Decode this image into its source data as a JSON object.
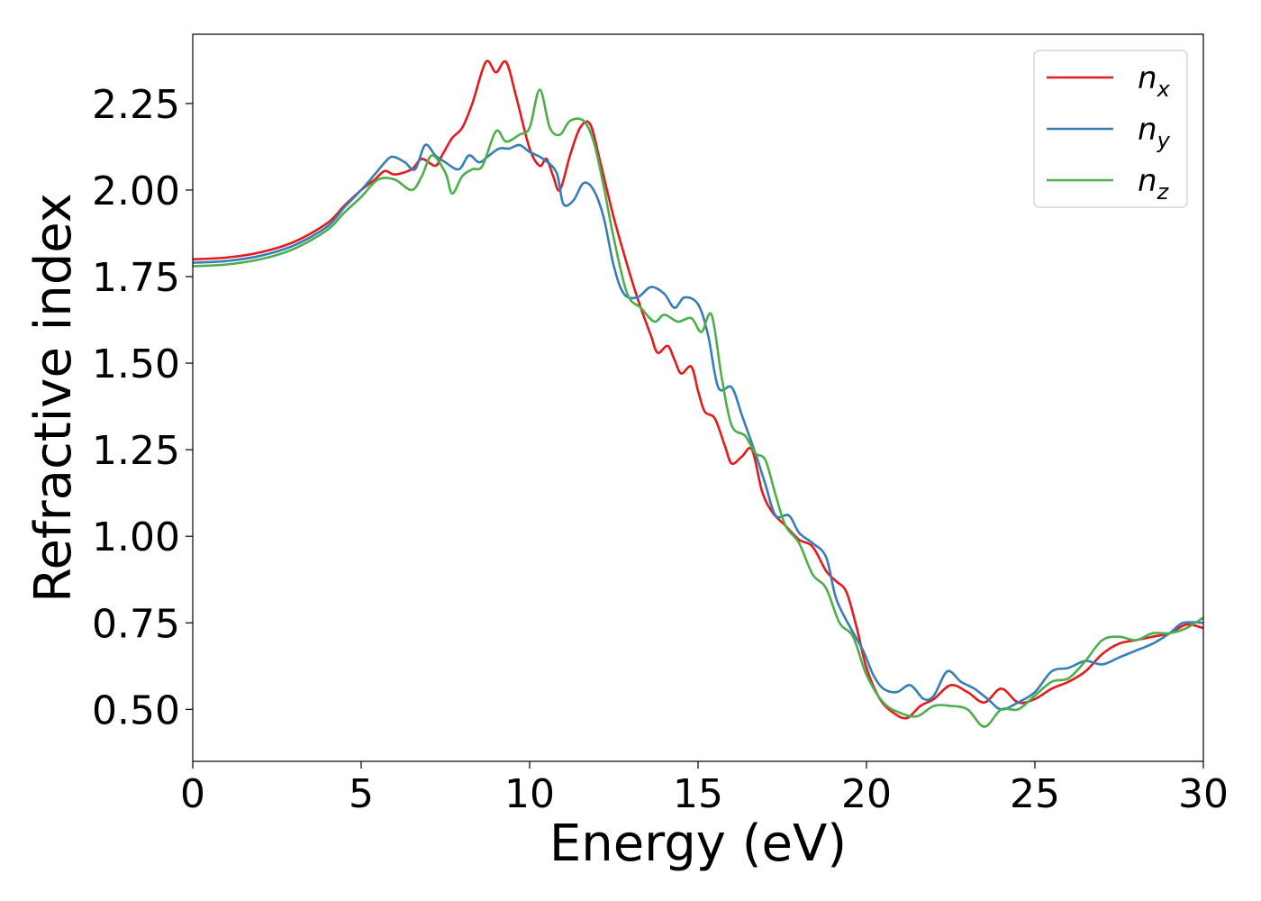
{
  "chart_data": {
    "type": "line",
    "xlabel": "Energy (eV)",
    "ylabel": "Refractive index",
    "xlim": [
      0,
      30
    ],
    "ylim": [
      0.35,
      2.45
    ],
    "xticks": [
      0,
      5,
      10,
      15,
      20,
      25,
      30
    ],
    "xtick_labels": [
      "0",
      "5",
      "10",
      "15",
      "20",
      "25",
      "30"
    ],
    "yticks": [
      0.5,
      0.75,
      1.0,
      1.25,
      1.5,
      1.75,
      2.0,
      2.25
    ],
    "ytick_labels": [
      "0.50",
      "0.75",
      "1.00",
      "1.25",
      "1.50",
      "1.75",
      "2.00",
      "2.25"
    ],
    "grid": false,
    "legend_position": "top-right",
    "series": [
      {
        "name": "n",
        "subscript": "x",
        "color": "#e41a1c",
        "points": [
          [
            0,
            1.8
          ],
          [
            1,
            1.805
          ],
          [
            2,
            1.82
          ],
          [
            3,
            1.85
          ],
          [
            4,
            1.905
          ],
          [
            4.5,
            1.955
          ],
          [
            5,
            2.0
          ],
          [
            5.4,
            2.03
          ],
          [
            5.7,
            2.055
          ],
          [
            6,
            2.045
          ],
          [
            6.5,
            2.06
          ],
          [
            6.8,
            2.09
          ],
          [
            7.2,
            2.07
          ],
          [
            7.4,
            2.1
          ],
          [
            7.7,
            2.15
          ],
          [
            8,
            2.18
          ],
          [
            8.3,
            2.25
          ],
          [
            8.7,
            2.37
          ],
          [
            9,
            2.34
          ],
          [
            9.3,
            2.37
          ],
          [
            9.6,
            2.27
          ],
          [
            10,
            2.12
          ],
          [
            10.3,
            2.07
          ],
          [
            10.5,
            2.09
          ],
          [
            10.7,
            2.04
          ],
          [
            10.9,
            2.0
          ],
          [
            11.2,
            2.1
          ],
          [
            11.5,
            2.18
          ],
          [
            11.8,
            2.19
          ],
          [
            12.1,
            2.08
          ],
          [
            12.5,
            1.92
          ],
          [
            13,
            1.75
          ],
          [
            13.3,
            1.66
          ],
          [
            13.6,
            1.58
          ],
          [
            13.8,
            1.53
          ],
          [
            14.1,
            1.55
          ],
          [
            14.3,
            1.51
          ],
          [
            14.5,
            1.47
          ],
          [
            14.8,
            1.49
          ],
          [
            15,
            1.42
          ],
          [
            15.2,
            1.36
          ],
          [
            15.5,
            1.34
          ],
          [
            15.8,
            1.26
          ],
          [
            16,
            1.21
          ],
          [
            16.3,
            1.23
          ],
          [
            16.6,
            1.25
          ],
          [
            16.9,
            1.13
          ],
          [
            17.2,
            1.07
          ],
          [
            17.6,
            1.03
          ],
          [
            18,
            0.99
          ],
          [
            18.4,
            0.97
          ],
          [
            18.8,
            0.9
          ],
          [
            19.1,
            0.87
          ],
          [
            19.4,
            0.84
          ],
          [
            19.7,
            0.74
          ],
          [
            20,
            0.62
          ],
          [
            20.4,
            0.53
          ],
          [
            20.8,
            0.49
          ],
          [
            21.2,
            0.475
          ],
          [
            21.6,
            0.51
          ],
          [
            22,
            0.53
          ],
          [
            22.5,
            0.57
          ],
          [
            23,
            0.55
          ],
          [
            23.5,
            0.52
          ],
          [
            24,
            0.56
          ],
          [
            24.5,
            0.52
          ],
          [
            25,
            0.53
          ],
          [
            25.5,
            0.56
          ],
          [
            26,
            0.58
          ],
          [
            26.5,
            0.61
          ],
          [
            27,
            0.66
          ],
          [
            27.5,
            0.69
          ],
          [
            28,
            0.7
          ],
          [
            28.5,
            0.71
          ],
          [
            29,
            0.72
          ],
          [
            29.5,
            0.745
          ],
          [
            30,
            0.735
          ]
        ]
      },
      {
        "name": "n",
        "subscript": "y",
        "color": "#377eb8",
        "points": [
          [
            0,
            1.79
          ],
          [
            1,
            1.795
          ],
          [
            2,
            1.81
          ],
          [
            3,
            1.84
          ],
          [
            4,
            1.895
          ],
          [
            4.5,
            1.95
          ],
          [
            5,
            2.0
          ],
          [
            5.4,
            2.045
          ],
          [
            5.8,
            2.09
          ],
          [
            6,
            2.095
          ],
          [
            6.3,
            2.08
          ],
          [
            6.6,
            2.06
          ],
          [
            6.9,
            2.13
          ],
          [
            7.2,
            2.1
          ],
          [
            7.5,
            2.08
          ],
          [
            7.9,
            2.06
          ],
          [
            8.2,
            2.1
          ],
          [
            8.5,
            2.08
          ],
          [
            8.8,
            2.1
          ],
          [
            9.1,
            2.12
          ],
          [
            9.4,
            2.12
          ],
          [
            9.7,
            2.13
          ],
          [
            10,
            2.11
          ],
          [
            10.4,
            2.09
          ],
          [
            10.8,
            2.05
          ],
          [
            11,
            1.96
          ],
          [
            11.3,
            1.97
          ],
          [
            11.6,
            2.02
          ],
          [
            11.9,
            2.0
          ],
          [
            12.2,
            1.92
          ],
          [
            12.5,
            1.78
          ],
          [
            12.8,
            1.7
          ],
          [
            13.2,
            1.69
          ],
          [
            13.6,
            1.72
          ],
          [
            14,
            1.7
          ],
          [
            14.3,
            1.66
          ],
          [
            14.6,
            1.69
          ],
          [
            15,
            1.67
          ],
          [
            15.3,
            1.58
          ],
          [
            15.6,
            1.43
          ],
          [
            16,
            1.43
          ],
          [
            16.3,
            1.35
          ],
          [
            16.7,
            1.24
          ],
          [
            17,
            1.15
          ],
          [
            17.3,
            1.06
          ],
          [
            17.7,
            1.06
          ],
          [
            18,
            1.01
          ],
          [
            18.4,
            0.98
          ],
          [
            18.8,
            0.94
          ],
          [
            19.1,
            0.82
          ],
          [
            19.5,
            0.74
          ],
          [
            19.9,
            0.67
          ],
          [
            20.2,
            0.6
          ],
          [
            20.5,
            0.56
          ],
          [
            20.9,
            0.55
          ],
          [
            21.3,
            0.57
          ],
          [
            21.7,
            0.53
          ],
          [
            22,
            0.54
          ],
          [
            22.4,
            0.61
          ],
          [
            22.8,
            0.58
          ],
          [
            23.2,
            0.56
          ],
          [
            23.6,
            0.53
          ],
          [
            24,
            0.5
          ],
          [
            24.5,
            0.52
          ],
          [
            25,
            0.55
          ],
          [
            25.5,
            0.61
          ],
          [
            26,
            0.62
          ],
          [
            26.5,
            0.64
          ],
          [
            27,
            0.63
          ],
          [
            27.5,
            0.65
          ],
          [
            28,
            0.67
          ],
          [
            28.5,
            0.69
          ],
          [
            29,
            0.72
          ],
          [
            29.4,
            0.75
          ],
          [
            30,
            0.75
          ]
        ]
      },
      {
        "name": "n",
        "subscript": "z",
        "color": "#4daf4a",
        "points": [
          [
            0,
            1.78
          ],
          [
            1,
            1.785
          ],
          [
            2,
            1.8
          ],
          [
            3,
            1.83
          ],
          [
            4,
            1.885
          ],
          [
            4.5,
            1.935
          ],
          [
            5,
            1.98
          ],
          [
            5.5,
            2.03
          ],
          [
            6,
            2.03
          ],
          [
            6.5,
            2.0
          ],
          [
            6.8,
            2.04
          ],
          [
            7.1,
            2.1
          ],
          [
            7.5,
            2.05
          ],
          [
            7.7,
            1.99
          ],
          [
            8,
            2.04
          ],
          [
            8.3,
            2.06
          ],
          [
            8.6,
            2.07
          ],
          [
            9,
            2.17
          ],
          [
            9.3,
            2.14
          ],
          [
            9.7,
            2.16
          ],
          [
            10,
            2.18
          ],
          [
            10.3,
            2.29
          ],
          [
            10.6,
            2.18
          ],
          [
            10.9,
            2.16
          ],
          [
            11.2,
            2.2
          ],
          [
            11.6,
            2.2
          ],
          [
            11.9,
            2.14
          ],
          [
            12.2,
            2.01
          ],
          [
            12.5,
            1.86
          ],
          [
            12.9,
            1.7
          ],
          [
            13.3,
            1.66
          ],
          [
            13.7,
            1.62
          ],
          [
            14,
            1.64
          ],
          [
            14.4,
            1.62
          ],
          [
            14.8,
            1.63
          ],
          [
            15.1,
            1.59
          ],
          [
            15.4,
            1.64
          ],
          [
            15.7,
            1.46
          ],
          [
            16,
            1.32
          ],
          [
            16.4,
            1.29
          ],
          [
            16.7,
            1.24
          ],
          [
            17,
            1.22
          ],
          [
            17.3,
            1.12
          ],
          [
            17.6,
            1.03
          ],
          [
            18,
            0.98
          ],
          [
            18.4,
            0.89
          ],
          [
            18.8,
            0.85
          ],
          [
            19.2,
            0.75
          ],
          [
            19.6,
            0.71
          ],
          [
            20,
            0.6
          ],
          [
            20.5,
            0.52
          ],
          [
            21,
            0.49
          ],
          [
            21.5,
            0.48
          ],
          [
            22,
            0.51
          ],
          [
            22.5,
            0.51
          ],
          [
            23,
            0.5
          ],
          [
            23.5,
            0.45
          ],
          [
            24,
            0.5
          ],
          [
            24.5,
            0.5
          ],
          [
            25,
            0.54
          ],
          [
            25.5,
            0.58
          ],
          [
            26,
            0.59
          ],
          [
            26.5,
            0.64
          ],
          [
            27,
            0.7
          ],
          [
            27.5,
            0.71
          ],
          [
            28,
            0.7
          ],
          [
            28.5,
            0.72
          ],
          [
            29,
            0.72
          ],
          [
            29.5,
            0.735
          ],
          [
            30,
            0.765
          ]
        ]
      }
    ]
  }
}
